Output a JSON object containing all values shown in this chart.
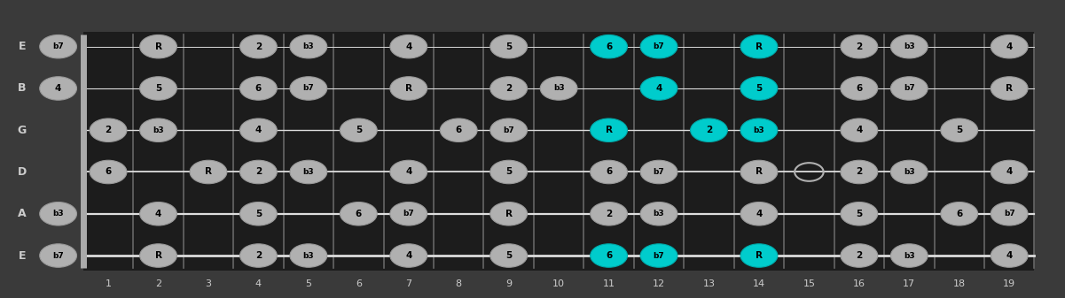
{
  "strings_display": [
    "E",
    "B",
    "G",
    "D",
    "A",
    "E"
  ],
  "num_frets": 19,
  "fret_markers": [
    1,
    2,
    3,
    4,
    5,
    6,
    7,
    8,
    9,
    10,
    11,
    12,
    13,
    14,
    15,
    16,
    17,
    18,
    19
  ],
  "bg_color": "#3a3a3a",
  "fretboard_color": "#1c1c1c",
  "string_color": "#dddddd",
  "fret_color": "#666666",
  "note_fill": "#b0b0b0",
  "note_edge": "#999999",
  "highlight_fill": "#00cccc",
  "highlight_edge": "#00aaaa",
  "label_color": "#cccccc",
  "nut_color": "#aaaaaa",
  "notes": [
    {
      "str": 5,
      "fret": 0,
      "label": "b7",
      "hi": false
    },
    {
      "str": 5,
      "fret": 2,
      "label": "R",
      "hi": false
    },
    {
      "str": 5,
      "fret": 4,
      "label": "2",
      "hi": false
    },
    {
      "str": 5,
      "fret": 5,
      "label": "b3",
      "hi": false
    },
    {
      "str": 5,
      "fret": 7,
      "label": "4",
      "hi": false
    },
    {
      "str": 5,
      "fret": 9,
      "label": "5",
      "hi": false
    },
    {
      "str": 5,
      "fret": 11,
      "label": "6",
      "hi": true
    },
    {
      "str": 5,
      "fret": 12,
      "label": "b7",
      "hi": true
    },
    {
      "str": 5,
      "fret": 14,
      "label": "R",
      "hi": true
    },
    {
      "str": 5,
      "fret": 16,
      "label": "2",
      "hi": false
    },
    {
      "str": 5,
      "fret": 17,
      "label": "b3",
      "hi": false
    },
    {
      "str": 5,
      "fret": 19,
      "label": "4",
      "hi": false
    },
    {
      "str": 4,
      "fret": 0,
      "label": "4",
      "hi": false
    },
    {
      "str": 4,
      "fret": 2,
      "label": "5",
      "hi": false
    },
    {
      "str": 4,
      "fret": 4,
      "label": "6",
      "hi": false
    },
    {
      "str": 4,
      "fret": 5,
      "label": "b7",
      "hi": false
    },
    {
      "str": 4,
      "fret": 7,
      "label": "R",
      "hi": false
    },
    {
      "str": 4,
      "fret": 9,
      "label": "2",
      "hi": false
    },
    {
      "str": 4,
      "fret": 10,
      "label": "b3",
      "hi": false
    },
    {
      "str": 4,
      "fret": 12,
      "label": "4",
      "hi": true
    },
    {
      "str": 4,
      "fret": 14,
      "label": "5",
      "hi": true
    },
    {
      "str": 4,
      "fret": 16,
      "label": "6",
      "hi": false
    },
    {
      "str": 4,
      "fret": 17,
      "label": "b7",
      "hi": false
    },
    {
      "str": 4,
      "fret": 19,
      "label": "R",
      "hi": false
    },
    {
      "str": 3,
      "fret": 1,
      "label": "2",
      "hi": false
    },
    {
      "str": 3,
      "fret": 2,
      "label": "b3",
      "hi": false
    },
    {
      "str": 3,
      "fret": 4,
      "label": "4",
      "hi": false
    },
    {
      "str": 3,
      "fret": 6,
      "label": "5",
      "hi": false
    },
    {
      "str": 3,
      "fret": 8,
      "label": "6",
      "hi": false
    },
    {
      "str": 3,
      "fret": 9,
      "label": "b7",
      "hi": false
    },
    {
      "str": 3,
      "fret": 11,
      "label": "R",
      "hi": true
    },
    {
      "str": 3,
      "fret": 13,
      "label": "2",
      "hi": true
    },
    {
      "str": 3,
      "fret": 14,
      "label": "b3",
      "hi": true
    },
    {
      "str": 3,
      "fret": 16,
      "label": "4",
      "hi": false
    },
    {
      "str": 3,
      "fret": 18,
      "label": "5",
      "hi": false
    },
    {
      "str": 2,
      "fret": 1,
      "label": "6",
      "hi": false
    },
    {
      "str": 2,
      "fret": 3,
      "label": "R",
      "hi": false
    },
    {
      "str": 2,
      "fret": 4,
      "label": "2",
      "hi": false
    },
    {
      "str": 2,
      "fret": 5,
      "label": "b3",
      "hi": false
    },
    {
      "str": 2,
      "fret": 7,
      "label": "4",
      "hi": false
    },
    {
      "str": 2,
      "fret": 9,
      "label": "5",
      "hi": false
    },
    {
      "str": 2,
      "fret": 11,
      "label": "6",
      "hi": false
    },
    {
      "str": 2,
      "fret": 12,
      "label": "b7",
      "hi": false
    },
    {
      "str": 2,
      "fret": 14,
      "label": "R",
      "hi": false
    },
    {
      "str": 2,
      "fret": 16,
      "label": "2",
      "hi": false
    },
    {
      "str": 2,
      "fret": 17,
      "label": "b3",
      "hi": false
    },
    {
      "str": 2,
      "fret": 19,
      "label": "4",
      "hi": false
    },
    {
      "str": 1,
      "fret": 0,
      "label": "b3",
      "hi": false
    },
    {
      "str": 1,
      "fret": 2,
      "label": "4",
      "hi": false
    },
    {
      "str": 1,
      "fret": 4,
      "label": "5",
      "hi": false
    },
    {
      "str": 1,
      "fret": 6,
      "label": "6",
      "hi": false
    },
    {
      "str": 1,
      "fret": 7,
      "label": "b7",
      "hi": false
    },
    {
      "str": 1,
      "fret": 9,
      "label": "R",
      "hi": false
    },
    {
      "str": 1,
      "fret": 11,
      "label": "2",
      "hi": false
    },
    {
      "str": 1,
      "fret": 12,
      "label": "b3",
      "hi": false
    },
    {
      "str": 1,
      "fret": 14,
      "label": "4",
      "hi": false
    },
    {
      "str": 1,
      "fret": 16,
      "label": "5",
      "hi": false
    },
    {
      "str": 1,
      "fret": 18,
      "label": "6",
      "hi": false
    },
    {
      "str": 1,
      "fret": 19,
      "label": "b7",
      "hi": false
    },
    {
      "str": 0,
      "fret": 0,
      "label": "b7",
      "hi": false
    },
    {
      "str": 0,
      "fret": 2,
      "label": "R",
      "hi": false
    },
    {
      "str": 0,
      "fret": 4,
      "label": "2",
      "hi": false
    },
    {
      "str": 0,
      "fret": 5,
      "label": "b3",
      "hi": false
    },
    {
      "str": 0,
      "fret": 7,
      "label": "4",
      "hi": false
    },
    {
      "str": 0,
      "fret": 9,
      "label": "5",
      "hi": false
    },
    {
      "str": 0,
      "fret": 11,
      "label": "6",
      "hi": true
    },
    {
      "str": 0,
      "fret": 12,
      "label": "b7",
      "hi": true
    },
    {
      "str": 0,
      "fret": 14,
      "label": "R",
      "hi": true
    },
    {
      "str": 0,
      "fret": 16,
      "label": "2",
      "hi": false
    },
    {
      "str": 0,
      "fret": 17,
      "label": "b3",
      "hi": false
    },
    {
      "str": 0,
      "fret": 19,
      "label": "4",
      "hi": false
    }
  ],
  "open_circles": [
    {
      "str": 2,
      "fret": 3
    },
    {
      "str": 2,
      "fret": 5
    },
    {
      "str": 2,
      "fret": 7
    },
    {
      "str": 2,
      "fret": 9
    },
    {
      "str": 2,
      "fret": 15
    },
    {
      "str": 2,
      "fret": 17
    },
    {
      "str": 2,
      "fret": 19
    },
    {
      "str": 1,
      "fret": 12
    }
  ]
}
